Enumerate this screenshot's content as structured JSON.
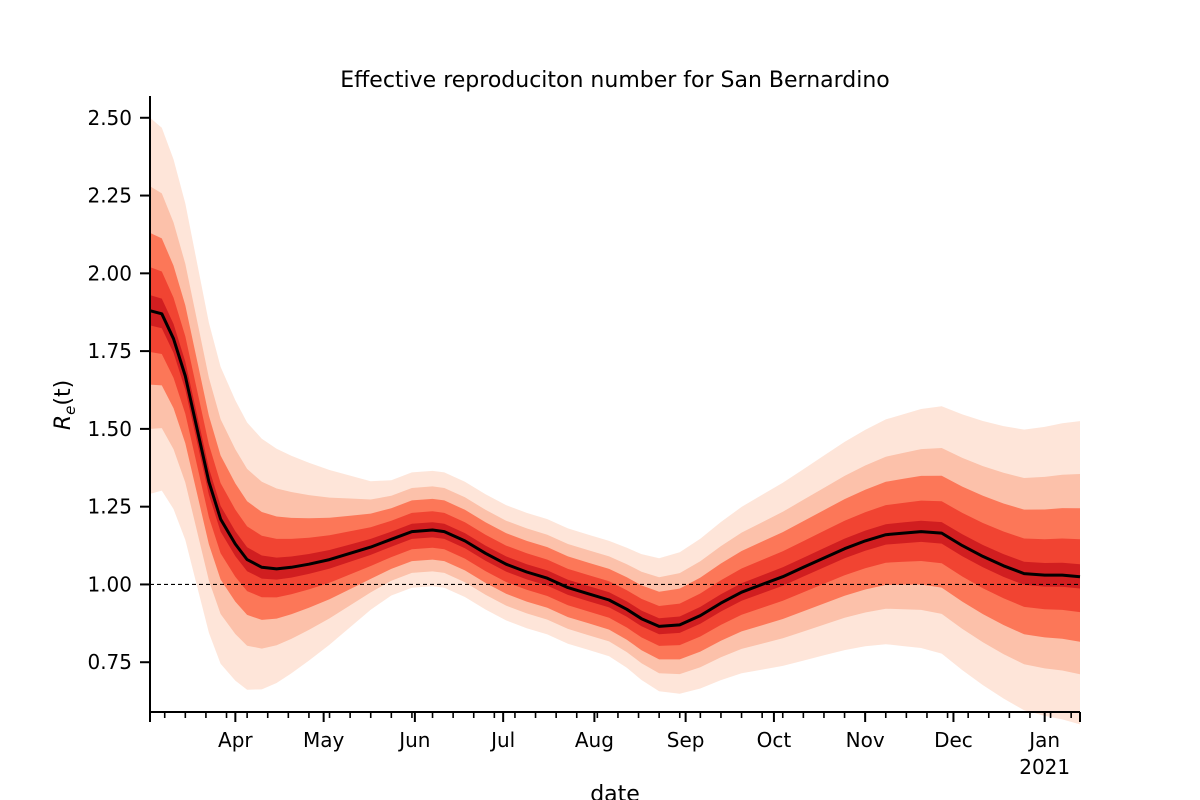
{
  "chart_data": {
    "type": "line",
    "title": "Effective reproduciton number for San Bernardino",
    "xlabel": "date",
    "ylabel_main": "R",
    "ylabel_sub": "e",
    "ylabel_tail": "(t)",
    "xlim": [
      "2020-03-03",
      "2021-01-13"
    ],
    "ylim": [
      0.59,
      2.57
    ],
    "y_ticks": [
      0.75,
      1.0,
      1.25,
      1.5,
      1.75,
      2.0,
      2.25,
      2.5
    ],
    "y_tick_labels": [
      "0.75",
      "1.00",
      "1.25",
      "1.50",
      "1.75",
      "2.00",
      "2.25",
      "2.50"
    ],
    "x_major_ticks": [
      "2020-04-01",
      "2020-05-01",
      "2020-06-01",
      "2020-07-01",
      "2020-08-01",
      "2020-09-01",
      "2020-10-01",
      "2020-11-01",
      "2020-12-01",
      "2021-01-01"
    ],
    "x_major_labels": [
      "Apr",
      "May",
      "Jun",
      "Jul",
      "Aug",
      "Sep",
      "Oct",
      "Nov",
      "Dec",
      "Jan"
    ],
    "x_year_label": "2021",
    "reference_line": 1.0,
    "median_series": {
      "x": [
        "2020-03-03",
        "2020-03-07",
        "2020-03-11",
        "2020-03-15",
        "2020-03-19",
        "2020-03-23",
        "2020-03-27",
        "2020-04-01",
        "2020-04-05",
        "2020-04-10",
        "2020-04-15",
        "2020-04-20",
        "2020-04-26",
        "2020-05-03",
        "2020-05-10",
        "2020-05-17",
        "2020-05-24",
        "2020-05-31",
        "2020-06-07",
        "2020-06-11",
        "2020-06-18",
        "2020-06-25",
        "2020-07-02",
        "2020-07-09",
        "2020-07-16",
        "2020-07-23",
        "2020-07-30",
        "2020-08-06",
        "2020-08-12",
        "2020-08-17",
        "2020-08-23",
        "2020-08-30",
        "2020-09-06",
        "2020-09-13",
        "2020-09-20",
        "2020-09-27",
        "2020-10-04",
        "2020-10-11",
        "2020-10-18",
        "2020-10-25",
        "2020-11-01",
        "2020-11-08",
        "2020-11-14",
        "2020-11-20",
        "2020-11-27",
        "2020-12-04",
        "2020-12-11",
        "2020-12-18",
        "2020-12-25",
        "2021-01-01",
        "2021-01-07",
        "2021-01-13"
      ],
      "y": [
        1.88,
        1.87,
        1.79,
        1.67,
        1.5,
        1.33,
        1.21,
        1.13,
        1.08,
        1.055,
        1.05,
        1.055,
        1.065,
        1.08,
        1.1,
        1.12,
        1.145,
        1.17,
        1.175,
        1.17,
        1.14,
        1.1,
        1.065,
        1.04,
        1.02,
        0.99,
        0.97,
        0.95,
        0.92,
        0.89,
        0.865,
        0.87,
        0.9,
        0.94,
        0.975,
        1.0,
        1.025,
        1.055,
        1.085,
        1.115,
        1.14,
        1.16,
        1.165,
        1.17,
        1.165,
        1.125,
        1.09,
        1.06,
        1.035,
        1.03,
        1.03,
        1.025
      ]
    },
    "uncertainty_bands": [
      {
        "level": "50%",
        "half_width_start": 0.05,
        "half_width_mid": 0.025,
        "half_width_end": 0.04,
        "color": "#cb181d"
      },
      {
        "level": "80%",
        "half_width_start": 0.14,
        "half_width_mid": 0.06,
        "half_width_end": 0.12,
        "color": "#ef3b2c"
      },
      {
        "level": "90%",
        "half_width_start": 0.25,
        "half_width_mid": 0.1,
        "half_width_end": 0.22,
        "color": "#fb6a4a"
      },
      {
        "level": "95%",
        "half_width_start": 0.4,
        "half_width_mid": 0.14,
        "half_width_end": 0.33,
        "color": "#fcbba1"
      },
      {
        "level": "99%",
        "half_width_start": 0.62,
        "half_width_mid": 0.19,
        "half_width_end": 0.5,
        "color": "#fee0d2"
      }
    ],
    "colors": {
      "median_line": "#000000",
      "reference_line": "#000000",
      "axis": "#000000"
    },
    "grid": false,
    "legend": "none"
  }
}
